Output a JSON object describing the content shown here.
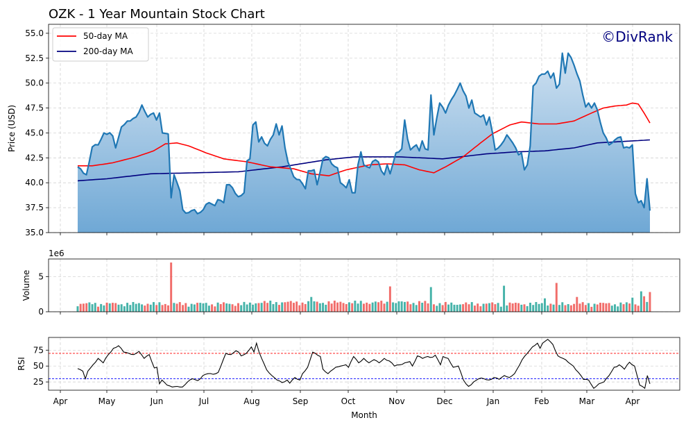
{
  "chart_data": {
    "type": "line",
    "title": "OZK - 1 Year Mountain Stock Chart",
    "watermark": "©DivRank",
    "colors": {
      "price_line": "#1f77b4",
      "fill_top": "#cfe1f1",
      "fill_bottom": "#6fa8d5",
      "ma50": "#ff0000",
      "ma200": "#00007f",
      "volume_up": "#26a69a",
      "volume_down": "#ef5350",
      "rsi_line": "#000000",
      "rsi_overbought": "#ff0000",
      "rsi_oversold": "#0000ff",
      "grid": "#cccccc",
      "watermark": "#00007f"
    },
    "x_axis": {
      "label": "Month",
      "ticks": [
        "Apr",
        "May",
        "Jun",
        "Jul",
        "Aug",
        "Sep",
        "Oct",
        "Nov",
        "Dec",
        "Jan",
        "Feb",
        "Mar",
        "Apr"
      ]
    },
    "legend": {
      "placement": "top-left",
      "entries": [
        {
          "label": "50-day MA",
          "series": "ma50"
        },
        {
          "label": "200-day MA",
          "series": "ma200"
        }
      ]
    },
    "price_panel": {
      "ylabel": "Price (USD)",
      "ylim": [
        35.0,
        55.9
      ],
      "yticks": [
        "35.0",
        "37.5",
        "40.0",
        "42.5",
        "45.0",
        "47.5",
        "50.0",
        "52.5",
        "55.0"
      ],
      "grid": true
    },
    "volume_panel": {
      "ylabel": "Volume",
      "scale_label": "1e6",
      "ylim": [
        0,
        7.5
      ],
      "yticks": [
        "0",
        "5"
      ],
      "grid": true
    },
    "rsi_panel": {
      "ylabel": "RSI",
      "ylim": [
        12,
        95
      ],
      "yticks": [
        "25",
        "50",
        "75"
      ],
      "overbought": 70,
      "oversold": 30,
      "grid": true
    },
    "price_keyframes": [
      [
        0,
        41.6
      ],
      [
        3,
        40.8
      ],
      [
        5,
        43.6
      ],
      [
        7,
        43.8
      ],
      [
        9,
        45.0
      ],
      [
        12,
        44.7
      ],
      [
        13,
        43.5
      ],
      [
        15,
        45.6
      ],
      [
        18,
        46.2
      ],
      [
        20,
        46.6
      ],
      [
        22,
        47.8
      ],
      [
        24,
        46.6
      ],
      [
        26,
        47.0
      ],
      [
        27,
        46.3
      ],
      [
        28,
        47.0
      ],
      [
        29,
        45.0
      ],
      [
        31,
        44.9
      ],
      [
        32,
        38.5
      ],
      [
        33,
        40.8
      ],
      [
        35,
        39.2
      ],
      [
        36,
        37.3
      ],
      [
        38,
        37.0
      ],
      [
        40,
        37.3
      ],
      [
        41,
        36.9
      ],
      [
        43,
        37.3
      ],
      [
        45,
        38.0
      ],
      [
        47,
        37.7
      ],
      [
        48,
        38.3
      ],
      [
        50,
        38.0
      ],
      [
        51,
        39.8
      ],
      [
        53,
        39.5
      ],
      [
        55,
        38.6
      ],
      [
        57,
        39.0
      ],
      [
        58,
        42.2
      ],
      [
        59,
        42.4
      ],
      [
        60,
        45.8
      ],
      [
        61,
        46.1
      ],
      [
        62,
        44.1
      ],
      [
        63,
        44.6
      ],
      [
        65,
        43.7
      ],
      [
        67,
        44.8
      ],
      [
        68,
        45.9
      ],
      [
        69,
        44.8
      ],
      [
        70,
        45.7
      ],
      [
        71,
        43.5
      ],
      [
        72,
        42.1
      ],
      [
        74,
        40.6
      ],
      [
        76,
        40.3
      ],
      [
        78,
        39.4
      ],
      [
        79,
        41.2
      ],
      [
        81,
        41.3
      ],
      [
        82,
        39.8
      ],
      [
        84,
        42.4
      ],
      [
        86,
        42.5
      ],
      [
        87,
        41.9
      ],
      [
        89,
        41.5
      ],
      [
        90,
        40.0
      ],
      [
        92,
        39.5
      ],
      [
        93,
        40.3
      ],
      [
        94,
        39.0
      ],
      [
        95,
        39.0
      ],
      [
        96,
        41.8
      ],
      [
        97,
        43.1
      ],
      [
        98,
        41.8
      ],
      [
        100,
        41.5
      ],
      [
        102,
        42.3
      ],
      [
        103,
        42.1
      ],
      [
        104,
        41.2
      ],
      [
        105,
        40.8
      ],
      [
        106,
        41.8
      ],
      [
        107,
        40.9
      ],
      [
        109,
        43.0
      ],
      [
        111,
        43.4
      ],
      [
        112,
        46.3
      ],
      [
        113,
        44.4
      ],
      [
        114,
        43.3
      ],
      [
        116,
        43.8
      ],
      [
        117,
        43.2
      ],
      [
        118,
        44.2
      ],
      [
        119,
        43.4
      ],
      [
        120,
        43.3
      ],
      [
        121,
        48.8
      ],
      [
        122,
        44.8
      ],
      [
        123,
        46.5
      ],
      [
        124,
        48.0
      ],
      [
        125,
        47.6
      ],
      [
        126,
        47.0
      ],
      [
        127,
        47.8
      ],
      [
        129,
        48.8
      ],
      [
        131,
        50.0
      ],
      [
        133,
        48.7
      ],
      [
        134,
        47.5
      ],
      [
        135,
        48.3
      ],
      [
        136,
        47.0
      ],
      [
        137,
        46.8
      ],
      [
        139,
        46.8
      ],
      [
        140,
        45.8
      ],
      [
        141,
        46.6
      ],
      [
        143,
        43.3
      ],
      [
        145,
        43.8
      ],
      [
        147,
        44.8
      ],
      [
        149,
        44.0
      ],
      [
        151,
        42.8
      ],
      [
        152,
        43.0
      ],
      [
        153,
        41.3
      ],
      [
        154,
        41.8
      ],
      [
        155,
        43.7
      ],
      [
        156,
        49.7
      ],
      [
        157,
        50.0
      ],
      [
        159,
        50.9
      ],
      [
        161,
        51.2
      ],
      [
        162,
        50.5
      ],
      [
        163,
        51.0
      ],
      [
        164,
        49.5
      ],
      [
        165,
        49.9
      ],
      [
        166,
        53.0
      ],
      [
        167,
        51.0
      ],
      [
        168,
        53.0
      ],
      [
        170,
        51.8
      ],
      [
        172,
        50.2
      ],
      [
        174,
        47.6
      ],
      [
        175,
        48.0
      ],
      [
        176,
        47.5
      ],
      [
        177,
        48.0
      ],
      [
        178,
        47.3
      ],
      [
        180,
        45.0
      ],
      [
        181,
        44.5
      ],
      [
        182,
        43.8
      ],
      [
        183,
        44.0
      ],
      [
        184,
        44.3
      ],
      [
        186,
        44.6
      ],
      [
        187,
        43.5
      ],
      [
        189,
        43.5
      ],
      [
        190,
        43.8
      ],
      [
        191,
        38.9
      ],
      [
        192,
        38.0
      ],
      [
        193,
        38.2
      ],
      [
        194,
        37.5
      ],
      [
        195,
        40.4
      ],
      [
        196,
        37.2
      ]
    ],
    "ma50_keyframes": [
      [
        0,
        41.7
      ],
      [
        5,
        41.7
      ],
      [
        12,
        42.0
      ],
      [
        20,
        42.6
      ],
      [
        26,
        43.2
      ],
      [
        30,
        43.9
      ],
      [
        34,
        44.0
      ],
      [
        38,
        43.7
      ],
      [
        44,
        43.0
      ],
      [
        50,
        42.4
      ],
      [
        58,
        42.1
      ],
      [
        66,
        41.6
      ],
      [
        74,
        41.4
      ],
      [
        80,
        40.9
      ],
      [
        86,
        40.7
      ],
      [
        92,
        41.3
      ],
      [
        100,
        41.8
      ],
      [
        106,
        41.9
      ],
      [
        112,
        41.8
      ],
      [
        117,
        41.3
      ],
      [
        122,
        41.0
      ],
      [
        126,
        41.6
      ],
      [
        132,
        42.6
      ],
      [
        138,
        44.0
      ],
      [
        142,
        44.9
      ],
      [
        148,
        45.8
      ],
      [
        152,
        46.1
      ],
      [
        158,
        45.9
      ],
      [
        164,
        45.9
      ],
      [
        170,
        46.2
      ],
      [
        176,
        47.0
      ],
      [
        180,
        47.5
      ],
      [
        184,
        47.7
      ],
      [
        188,
        47.8
      ],
      [
        190,
        48.0
      ],
      [
        192,
        47.9
      ],
      [
        194,
        47.0
      ],
      [
        196,
        46.0
      ]
    ],
    "ma200_keyframes": [
      [
        0,
        40.2
      ],
      [
        10,
        40.4
      ],
      [
        25,
        40.9
      ],
      [
        40,
        41.0
      ],
      [
        55,
        41.1
      ],
      [
        70,
        41.6
      ],
      [
        85,
        42.3
      ],
      [
        95,
        42.6
      ],
      [
        110,
        42.6
      ],
      [
        125,
        42.4
      ],
      [
        140,
        42.9
      ],
      [
        150,
        43.1
      ],
      [
        160,
        43.2
      ],
      [
        170,
        43.5
      ],
      [
        178,
        44.0
      ],
      [
        190,
        44.2
      ],
      [
        196,
        44.3
      ]
    ],
    "rsi_keyframes": [
      [
        0,
        46
      ],
      [
        2,
        42
      ],
      [
        3,
        30
      ],
      [
        4,
        42
      ],
      [
        6,
        52
      ],
      [
        8,
        62
      ],
      [
        10,
        55
      ],
      [
        12,
        68
      ],
      [
        14,
        78
      ],
      [
        16,
        82
      ],
      [
        18,
        72
      ],
      [
        20,
        70
      ],
      [
        22,
        68
      ],
      [
        24,
        73
      ],
      [
        26,
        62
      ],
      [
        28,
        68
      ],
      [
        30,
        47
      ],
      [
        31,
        48
      ],
      [
        32,
        22
      ],
      [
        33,
        28
      ],
      [
        35,
        20
      ],
      [
        37,
        17
      ],
      [
        39,
        18
      ],
      [
        41,
        17
      ],
      [
        43,
        25
      ],
      [
        45,
        30
      ],
      [
        47,
        27
      ],
      [
        49,
        35
      ],
      [
        51,
        38
      ],
      [
        53,
        37
      ],
      [
        55,
        40
      ],
      [
        57,
        60
      ],
      [
        58,
        70
      ],
      [
        60,
        68
      ],
      [
        62,
        74
      ],
      [
        63,
        72
      ],
      [
        64,
        66
      ],
      [
        66,
        70
      ],
      [
        68,
        80
      ],
      [
        69,
        72
      ],
      [
        70,
        86
      ],
      [
        71,
        72
      ],
      [
        72,
        62
      ],
      [
        74,
        44
      ],
      [
        76,
        35
      ],
      [
        78,
        28
      ],
      [
        80,
        24
      ],
      [
        82,
        28
      ],
      [
        83,
        23
      ],
      [
        85,
        32
      ],
      [
        87,
        28
      ],
      [
        88,
        38
      ],
      [
        90,
        48
      ],
      [
        92,
        72
      ],
      [
        93,
        70
      ],
      [
        95,
        65
      ],
      [
        96,
        45
      ],
      [
        98,
        38
      ],
      [
        99,
        42
      ],
      [
        101,
        48
      ],
      [
        103,
        50
      ],
      [
        105,
        52
      ],
      [
        106,
        48
      ],
      [
        108,
        65
      ],
      [
        110,
        55
      ],
      [
        112,
        62
      ],
      [
        114,
        55
      ],
      [
        116,
        60
      ],
      [
        118,
        55
      ],
      [
        120,
        62
      ],
      [
        122,
        58
      ],
      [
        124,
        50
      ],
      [
        126,
        52
      ],
      [
        128,
        55
      ],
      [
        130,
        57
      ],
      [
        131,
        50
      ],
      [
        133,
        66
      ],
      [
        135,
        62
      ],
      [
        137,
        65
      ],
      [
        139,
        64
      ],
      [
        140,
        67
      ],
      [
        142,
        52
      ],
      [
        143,
        65
      ],
      [
        145,
        62
      ],
      [
        147,
        48
      ],
      [
        149,
        50
      ],
      [
        151,
        28
      ],
      [
        152,
        22
      ],
      [
        153,
        18
      ],
      [
        155,
        25
      ],
      [
        157,
        30
      ],
      [
        159,
        30
      ],
      [
        161,
        28
      ],
      [
        163,
        32
      ],
      [
        165,
        29
      ],
      [
        167,
        35
      ],
      [
        169,
        32
      ],
      [
        171,
        38
      ],
      [
        173,
        52
      ],
      [
        174,
        60
      ],
      [
        176,
        70
      ],
      [
        178,
        80
      ],
      [
        180,
        86
      ],
      [
        181,
        78
      ],
      [
        182,
        86
      ],
      [
        184,
        92
      ],
      [
        186,
        84
      ],
      [
        187,
        74
      ],
      [
        188,
        66
      ],
      [
        190,
        62
      ],
      [
        192,
        56
      ],
      [
        194,
        50
      ],
      [
        196,
        40
      ],
      [
        198,
        29
      ],
      [
        200,
        28
      ],
      [
        202,
        15
      ],
      [
        204,
        22
      ],
      [
        206,
        25
      ],
      [
        208,
        35
      ],
      [
        210,
        48
      ],
      [
        212,
        52
      ],
      [
        214,
        45
      ],
      [
        216,
        56
      ],
      [
        218,
        50
      ],
      [
        220,
        20
      ],
      [
        221,
        18
      ],
      [
        222,
        15
      ],
      [
        223,
        35
      ],
      [
        224,
        22
      ]
    ],
    "volume_data": {
      "count": 197,
      "base": 1.0,
      "spikes": [
        [
          32,
          7.0
        ],
        [
          80,
          2.1
        ],
        [
          107,
          3.6
        ],
        [
          121,
          3.5
        ],
        [
          146,
          3.7
        ],
        [
          160,
          1.9
        ],
        [
          164,
          4.1
        ],
        [
          171,
          2.1
        ],
        [
          190,
          2.0
        ],
        [
          193,
          2.9
        ],
        [
          194,
          2.2
        ],
        [
          196,
          2.8
        ]
      ]
    }
  }
}
